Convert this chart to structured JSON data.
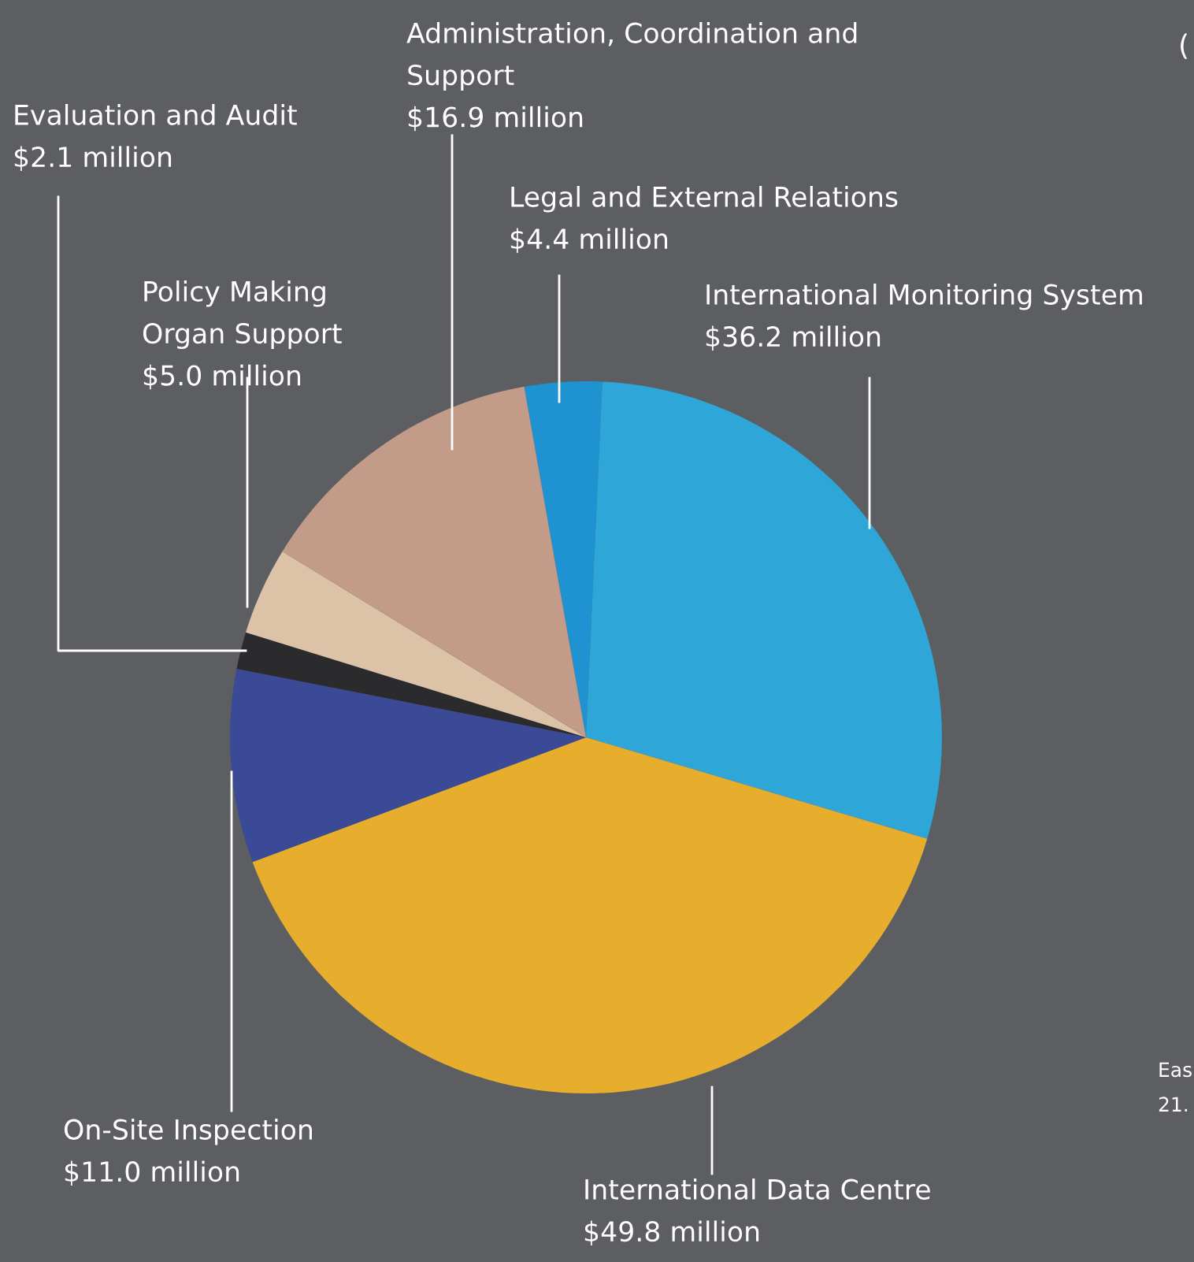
{
  "chart_data": {
    "type": "pie",
    "categories": [
      "Legal and External Relations",
      "International Monitoring System",
      "International Data Centre",
      "On-Site Inspection",
      "Evaluation and Audit",
      "Policy Making\nOrgan Support",
      "Administration, Coordination and\nSupport"
    ],
    "values": [
      4.4,
      36.2,
      49.8,
      11.0,
      2.1,
      5.0,
      16.9
    ],
    "colors": [
      "#1f93d2",
      "#2fa6d8",
      "#e6ae2c",
      "#3b4a96",
      "#2b2b2e",
      "#dcc3a8",
      "#c39b89"
    ],
    "value_labels": [
      "$4.4 million",
      "$36.2 million",
      "$49.8 million",
      "$11.0 million",
      "$2.1 million",
      "$5.0 million",
      "$16.9 million"
    ],
    "annotations": [
      "(",
      "Eas",
      "21."
    ],
    "legend": false
  }
}
